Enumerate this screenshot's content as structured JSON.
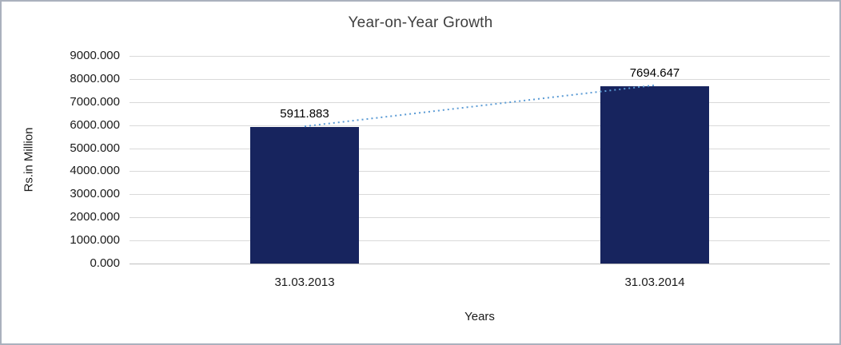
{
  "chart_data": {
    "type": "bar",
    "title": "Year-on-Year Growth",
    "categories": [
      "31.03.2013",
      "31.03.2014"
    ],
    "values": [
      5911.883,
      7694.647
    ],
    "data_labels": [
      "5911.883",
      "7694.647"
    ],
    "xlabel": "Years",
    "ylabel": "Rs.in Million",
    "ylim": [
      0,
      9000
    ],
    "ytick_step": 1000,
    "ytick_labels": [
      "0.000",
      "1000.000",
      "2000.000",
      "3000.000",
      "4000.000",
      "5000.000",
      "6000.000",
      "7000.000",
      "8000.000",
      "9000.000"
    ],
    "grid": true,
    "legend": false,
    "bar_color": "#17245e",
    "trendline_color": "#5b9bd5",
    "trendline_style": "dotted"
  }
}
